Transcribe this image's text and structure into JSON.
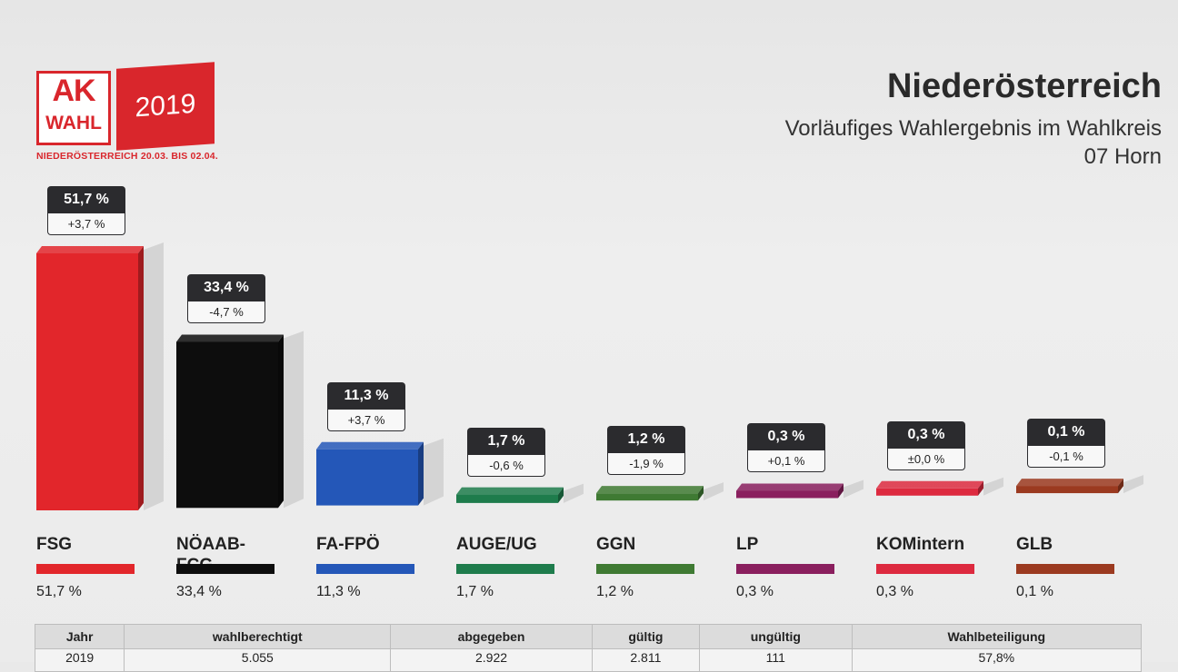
{
  "logo": {
    "ak": "AK",
    "wahl": "WAHL",
    "year": "2019",
    "subline": "NIEDERÖSTERREICH 20.03. BIS 02.04."
  },
  "header": {
    "title": "Niederösterreich",
    "subtitle_line1": "Vorläufiges Wahlergebnis im Wahlkreis",
    "subtitle_line2": "07 Horn"
  },
  "chart_data": {
    "type": "bar",
    "title": "",
    "xlabel": "",
    "ylabel": "",
    "categories": [
      "FSG",
      "NÖAAB-FCG",
      "FA-FPÖ",
      "AUGE/UG",
      "GGN",
      "LP",
      "KOMintern",
      "GLB"
    ],
    "category_lines": [
      [
        "FSG"
      ],
      [
        "NÖAAB-",
        "FCG"
      ],
      [
        "FA-FPÖ"
      ],
      [
        "AUGE/UG"
      ],
      [
        "GGN"
      ],
      [
        "LP"
      ],
      [
        "KOMintern"
      ],
      [
        "GLB"
      ]
    ],
    "values": [
      51.7,
      33.4,
      11.3,
      1.7,
      1.2,
      0.3,
      0.3,
      0.1
    ],
    "value_labels": [
      "51,7 %",
      "33,4 %",
      "11,3 %",
      "1,7 %",
      "1,2 %",
      "0,3 %",
      "0,3 %",
      "0,1 %"
    ],
    "change_labels": [
      "+3,7 %",
      "-4,7 %",
      "+3,7 %",
      "-0,6 %",
      "-1,9 %",
      "+0,1 %",
      "±0,0 %",
      "-0,1 %"
    ],
    "colors": [
      "#e2262b",
      "#0d0d0d",
      "#2457b8",
      "#1e7c4c",
      "#3f7a33",
      "#8a1f5e",
      "#dd2a3f",
      "#9b3a20"
    ],
    "ylim": [
      0,
      55
    ],
    "grid": false,
    "legend": "none"
  },
  "table": {
    "headers": [
      "Jahr",
      "wahlberechtigt",
      "abgegeben",
      "gültig",
      "ungültig",
      "Wahlbeteiligung"
    ],
    "rows": [
      [
        "2019",
        "5.055",
        "2.922",
        "2.811",
        "111",
        "57,8%"
      ]
    ]
  }
}
